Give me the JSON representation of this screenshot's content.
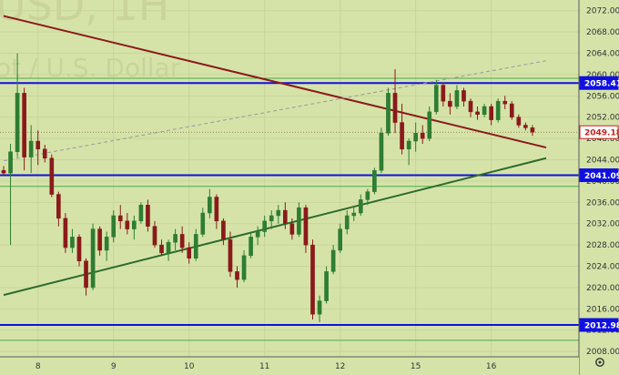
{
  "chart_data": {
    "type": "candlestick",
    "watermark": {
      "line1": "USD, 1H",
      "line2": "ot / U.S. Dollar"
    },
    "x_ticks": [
      "8",
      "9",
      "10",
      "11",
      "12",
      "15",
      "16"
    ],
    "y_ticks": [
      2008,
      2012,
      2016,
      2020,
      2024,
      2028,
      2032,
      2036,
      2040,
      2044,
      2048,
      2052,
      2056,
      2060,
      2064,
      2068,
      2072
    ],
    "ylim": [
      2007,
      2074
    ],
    "xlim": [
      0,
      79
    ],
    "day_index": [
      5,
      16,
      27,
      38,
      49,
      60,
      71
    ],
    "horizontal_levels": [
      {
        "value": 2058.41,
        "label": "2058.41",
        "color": "#1010e0"
      },
      {
        "value": 2041.09,
        "label": "2041.09",
        "color": "#1010e0"
      },
      {
        "value": 2012.98,
        "label": "2012.98",
        "color": "#1010e0"
      }
    ],
    "green_levels": [
      2059.3,
      2039.0,
      2010.1
    ],
    "current_price": {
      "value": 2049.18,
      "label": "2049.18",
      "color": "#c8201e"
    },
    "trendlines": [
      {
        "name": "resistance",
        "x": [
          0,
          79
        ],
        "y": [
          2071.0,
          2046.3
        ],
        "color": "#8b1a1a",
        "style": "solid"
      },
      {
        "name": "support",
        "x": [
          0,
          79
        ],
        "y": [
          2018.6,
          2044.3
        ],
        "color": "#2e6b2e",
        "style": "solid"
      },
      {
        "name": "channel",
        "x": [
          0,
          79
        ],
        "y": [
          2043.8,
          2062.6
        ],
        "color": "#9a9a9a",
        "style": "dashed"
      }
    ],
    "candles": [
      [
        2042,
        2042.8,
        2041.0,
        2041.5
      ],
      [
        2041.5,
        2047.0,
        2028.0,
        2045.5
      ],
      [
        2045.5,
        2064.0,
        2044.5,
        2056.5
      ],
      [
        2056.5,
        2057.5,
        2042.0,
        2044.5
      ],
      [
        2044.5,
        2050.5,
        2041.5,
        2047.5
      ],
      [
        2047.5,
        2049.5,
        2043.0,
        2046.0
      ],
      [
        2046.0,
        2046.8,
        2043.5,
        2044.3
      ],
      [
        2044.3,
        2045.0,
        2037.0,
        2037.5
      ],
      [
        2037.5,
        2038.0,
        2031.5,
        2033.0
      ],
      [
        2033.0,
        2034.0,
        2026.5,
        2027.5
      ],
      [
        2027.5,
        2031.0,
        2026.5,
        2029.5
      ],
      [
        2029.5,
        2030.0,
        2024.0,
        2025.0
      ],
      [
        2025.0,
        2025.5,
        2018.5,
        2020.0
      ],
      [
        2020.0,
        2032.0,
        2019.5,
        2031.0
      ],
      [
        2031.0,
        2031.5,
        2026.0,
        2027.0
      ],
      [
        2027.0,
        2030.5,
        2025.0,
        2029.5
      ],
      [
        2029.5,
        2034.5,
        2028.5,
        2033.5
      ],
      [
        2033.5,
        2035.5,
        2031.0,
        2032.5
      ],
      [
        2032.5,
        2034.0,
        2030.0,
        2031.0
      ],
      [
        2031.0,
        2033.5,
        2029.0,
        2032.5
      ],
      [
        2032.5,
        2036.0,
        2032.0,
        2035.5
      ],
      [
        2035.5,
        2036.5,
        2030.5,
        2031.5
      ],
      [
        2031.5,
        2032.5,
        2027.5,
        2028.0
      ],
      [
        2028.0,
        2029.0,
        2026.0,
        2026.5
      ],
      [
        2026.5,
        2029.0,
        2025.0,
        2028.5
      ],
      [
        2028.5,
        2031.0,
        2027.0,
        2030.0
      ],
      [
        2030.0,
        2031.5,
        2026.5,
        2027.5
      ],
      [
        2027.5,
        2028.5,
        2024.5,
        2025.5
      ],
      [
        2025.5,
        2031.0,
        2025.0,
        2030.0
      ],
      [
        2030.0,
        2035.0,
        2029.5,
        2034.0
      ],
      [
        2034.0,
        2038.5,
        2033.0,
        2037.0
      ],
      [
        2037.0,
        2037.5,
        2031.0,
        2032.5
      ],
      [
        2032.5,
        2033.0,
        2028.0,
        2029.0
      ],
      [
        2029.0,
        2030.5,
        2022.0,
        2023.0
      ],
      [
        2023.0,
        2024.0,
        2020.0,
        2021.5
      ],
      [
        2021.5,
        2027.0,
        2021.0,
        2026.0
      ],
      [
        2026.0,
        2030.5,
        2025.5,
        2029.5
      ],
      [
        2029.5,
        2031.5,
        2028.0,
        2030.5
      ],
      [
        2030.5,
        2033.5,
        2029.5,
        2032.5
      ],
      [
        2032.5,
        2034.5,
        2031.0,
        2033.5
      ],
      [
        2033.5,
        2035.5,
        2032.0,
        2034.5
      ],
      [
        2034.5,
        2036.0,
        2031.0,
        2032.0
      ],
      [
        2032.0,
        2033.0,
        2029.0,
        2030.0
      ],
      [
        2030.0,
        2036.0,
        2029.5,
        2035.0
      ],
      [
        2035.0,
        2035.5,
        2026.5,
        2028.0
      ],
      [
        2028.0,
        2029.0,
        2014.0,
        2015.0
      ],
      [
        2015.0,
        2018.5,
        2013.5,
        2017.5
      ],
      [
        2017.5,
        2024.0,
        2017.0,
        2023.0
      ],
      [
        2023.0,
        2028.0,
        2022.5,
        2027.0
      ],
      [
        2027.0,
        2032.0,
        2026.5,
        2031.0
      ],
      [
        2031.0,
        2034.5,
        2030.0,
        2033.5
      ],
      [
        2033.5,
        2035.0,
        2032.5,
        2034.0
      ],
      [
        2034.0,
        2037.5,
        2033.5,
        2036.5
      ],
      [
        2036.5,
        2038.5,
        2035.5,
        2038.0
      ],
      [
        2038.0,
        2042.5,
        2037.5,
        2042.0
      ],
      [
        2042.0,
        2050.0,
        2041.5,
        2049.0
      ],
      [
        2049.0,
        2057.5,
        2048.5,
        2056.5
      ],
      [
        2056.5,
        2061.0,
        2049.0,
        2051.0
      ],
      [
        2051.0,
        2054.5,
        2045.0,
        2046.0
      ],
      [
        2046.0,
        2048.0,
        2043.0,
        2047.5
      ],
      [
        2047.5,
        2051.0,
        2045.5,
        2049.0
      ],
      [
        2049.0,
        2050.5,
        2047.0,
        2048.0
      ],
      [
        2048.0,
        2054.0,
        2047.5,
        2053.0
      ],
      [
        2053.0,
        2059.0,
        2052.5,
        2058.0
      ],
      [
        2058.0,
        2058.5,
        2054.0,
        2055.0
      ],
      [
        2055.0,
        2056.5,
        2052.5,
        2054.0
      ],
      [
        2054.0,
        2058.0,
        2053.5,
        2057.0
      ],
      [
        2057.0,
        2057.5,
        2054.0,
        2055.0
      ],
      [
        2055.0,
        2055.5,
        2052.0,
        2053.0
      ],
      [
        2053.0,
        2054.0,
        2051.5,
        2052.5
      ],
      [
        2052.5,
        2054.5,
        2052.0,
        2054.0
      ],
      [
        2054.0,
        2054.5,
        2050.5,
        2051.5
      ],
      [
        2051.5,
        2055.5,
        2051.0,
        2055.0
      ],
      [
        2055.0,
        2056.0,
        2053.5,
        2054.5
      ],
      [
        2054.5,
        2055.0,
        2051.5,
        2052.0
      ],
      [
        2052.0,
        2052.5,
        2050.0,
        2050.5
      ],
      [
        2050.5,
        2051.0,
        2049.5,
        2050.0
      ],
      [
        2050.0,
        2050.5,
        2048.5,
        2049.18
      ]
    ],
    "colors": {
      "background": "#d5e3a9",
      "bull": "#2e7d32",
      "bear": "#8a1a1a",
      "axis_bg": "#d5e3a9",
      "axis_border": "#5a5a5a",
      "green_level": "#4cae4c"
    },
    "settings_icon": "gear-icon"
  }
}
